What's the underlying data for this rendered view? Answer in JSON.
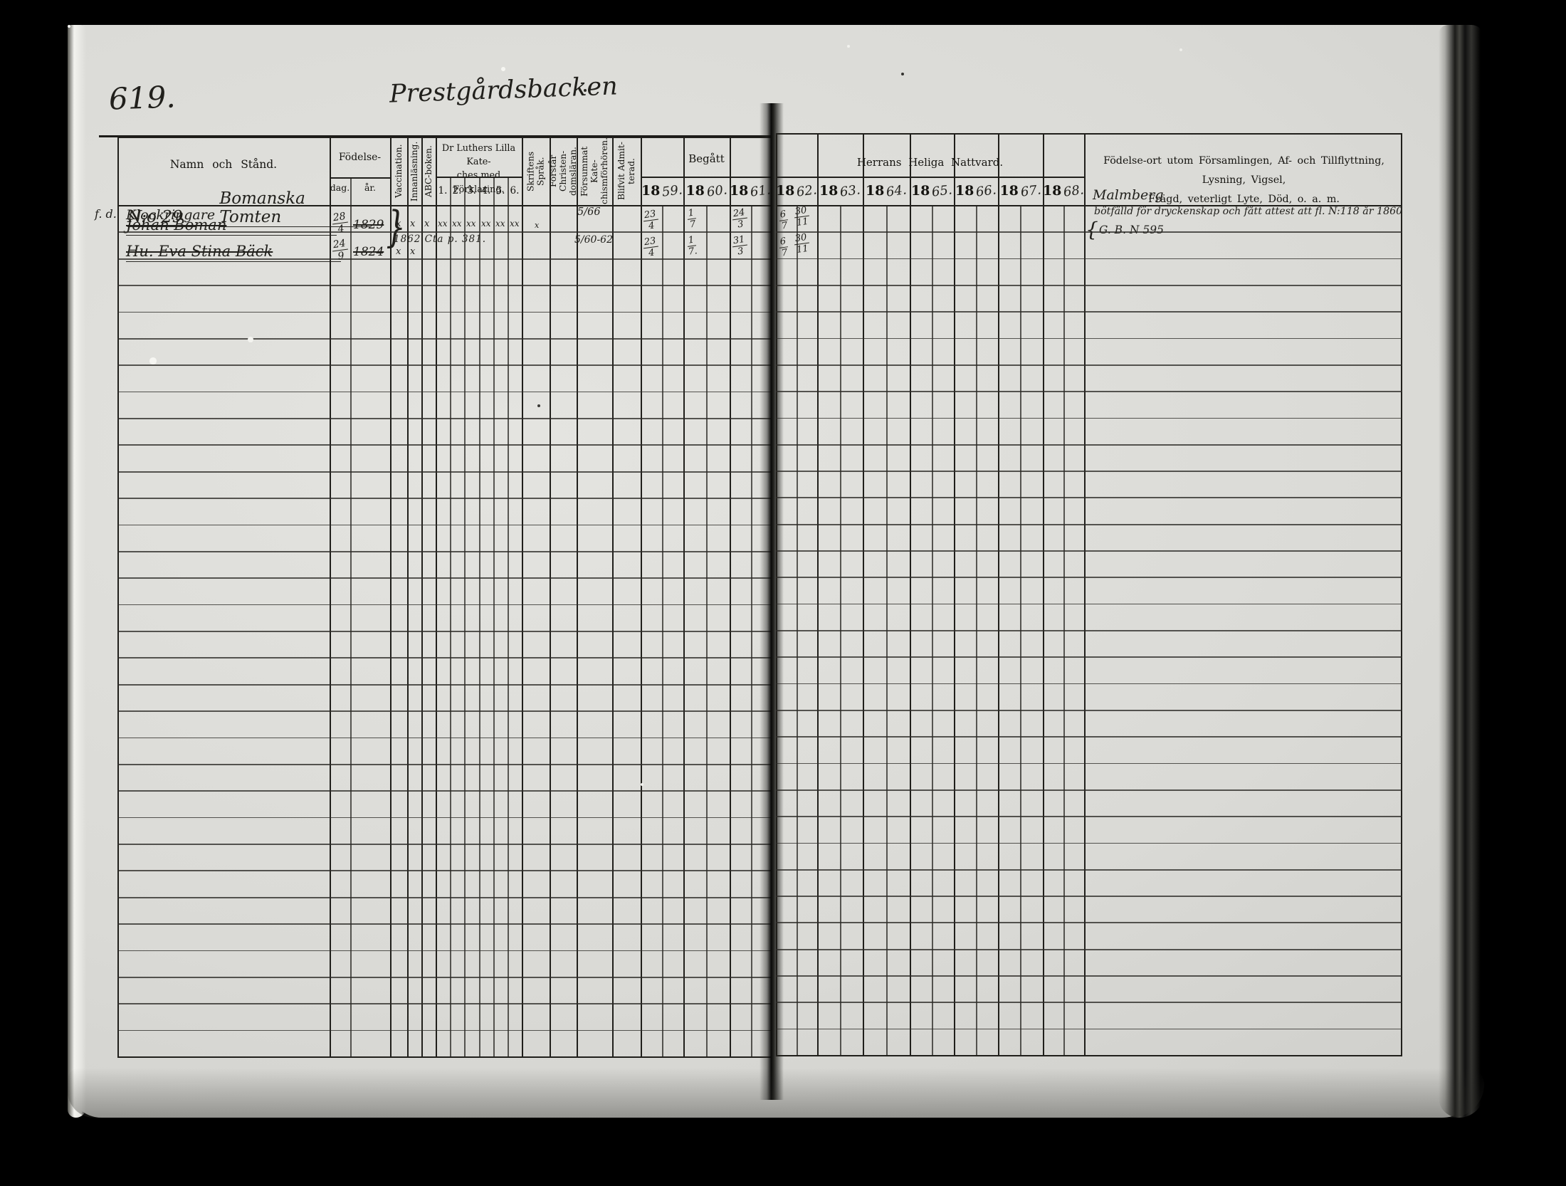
{
  "document": {
    "page_number": "619.",
    "place_title": "Prestgårdsbacken",
    "margin_note": "f. d."
  },
  "left_header": {
    "name_col": "Namn och Stånd.",
    "birth": "Födelse-",
    "birth_day": "dag.",
    "birth_year": "år.",
    "vaccination": "Vaccination.",
    "reading": "Innanläsning.",
    "abc_book": "ABC-boken.",
    "catechism_group": "Dr Luthers Lilla Kate-\nches med Förklaring.",
    "catechism_cols": [
      "1.",
      "2.",
      "3.",
      "4.",
      "5.",
      "6."
    ],
    "scripture": "Skriftens Språk.",
    "understands": "Förstår Christen-\ndomsläran.",
    "missed": "Försummat Kate-\nchismförhören.",
    "admitted": "Blifvit Admit-\nterad.",
    "communion_begun": "Begått",
    "year_prefix": "18",
    "years": [
      "59.",
      "60.",
      "61."
    ]
  },
  "right_header": {
    "communion": "Herrans Heliga Nattvard.",
    "year_prefix": "18",
    "years": [
      "62.",
      "63.",
      "64.",
      "65.",
      "66.",
      "67.",
      "68."
    ],
    "notes": "Födelse-ort utom Församlingen, Af- och Tillflyttning, Lysning, Vigsel,\nFrägd, veterligt Lyte, Död, o. a. m."
  },
  "entries": {
    "group_no": "N:o 29",
    "group_name": "Bomanska Tomten",
    "occupation": "Klockringare",
    "vacc_brace": "}",
    "notes_brace": "{",
    "notes_top": "Malmberg",
    "person1": {
      "name": "Johan Boman",
      "birth_day": "28",
      "birth_month": "4",
      "birth_year": "1829",
      "vaccination": "x",
      "reading": "x",
      "abc": "x",
      "catechism": [
        "xx",
        "xx",
        "xx",
        "xx",
        "xx",
        "xx"
      ],
      "scripture": "x",
      "catechism_note": "1862 Cta p. 381.",
      "missed": "5/66",
      "comm_1859": {
        "d": "23",
        "m": "4"
      },
      "comm_1860": {
        "d": "1",
        "m": "7"
      },
      "comm_1861": {
        "d": "24",
        "m": "3"
      },
      "comm_1862_1": {
        "d": "6",
        "m": "7"
      },
      "comm_1862_2": {
        "d": "30",
        "m": "11"
      },
      "remark": "bötfälld för dryckenskap och fått attest att fl. N:118 år 1860"
    },
    "person2": {
      "name": "Hu. Eva Stina Bäck",
      "birth_day": "24",
      "birth_month": "9",
      "birth_year": "1824",
      "vaccination": "x",
      "reading": "x",
      "missed": "5/60-62",
      "comm_1859": {
        "d": "23",
        "m": "4"
      },
      "comm_1860": {
        "d": "1",
        "m": "7."
      },
      "comm_1861": {
        "d": "31",
        "m": "3"
      },
      "comm_1862_1": {
        "d": "6",
        "m": "7"
      },
      "comm_1862_2": {
        "d": "30",
        "m": "11"
      },
      "remark": "G. B. N 595"
    }
  }
}
